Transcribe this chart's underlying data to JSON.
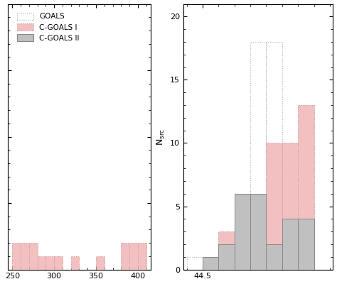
{
  "left_panel": {
    "xlim": [
      245,
      415
    ],
    "ylim": [
      0,
      20
    ],
    "xticks": [
      250,
      300,
      350,
      400
    ],
    "yticks": [
      0,
      5,
      10,
      15,
      20
    ],
    "goals_bins": [
      250,
      260,
      270,
      280,
      290,
      300,
      310,
      320,
      330,
      340,
      350,
      360,
      370,
      380,
      390,
      400,
      410
    ],
    "goals_counts": [
      2,
      2,
      2,
      1,
      1,
      1,
      0,
      1,
      0,
      0,
      1,
      0,
      0,
      2,
      2,
      2,
      0
    ],
    "cgoals1_bins": [
      250,
      260,
      270,
      280,
      290,
      300,
      310,
      320,
      330,
      340,
      350,
      360,
      370,
      380,
      390,
      400,
      410
    ],
    "cgoals1_counts": [
      2,
      2,
      2,
      1,
      1,
      1,
      0,
      1,
      0,
      0,
      1,
      0,
      0,
      2,
      2,
      2,
      0
    ]
  },
  "right_panel": {
    "ylabel": "N$_{\\mathrm{src}}$",
    "xlim": [
      44.2,
      46.55
    ],
    "ylim": [
      0,
      21
    ],
    "xticks": [
      44.5
    ],
    "yticks": [
      0,
      5,
      10,
      15,
      20
    ],
    "bin_width": 0.25,
    "goals_bins": [
      44.25,
      44.5,
      44.75,
      45.0,
      45.25,
      45.5,
      45.75,
      46.0,
      46.25
    ],
    "goals_counts": [
      1,
      1,
      3,
      5,
      18,
      18,
      10,
      13,
      0
    ],
    "cgoals1_bins": [
      44.25,
      44.5,
      44.75,
      45.0,
      45.25,
      45.5,
      45.75,
      46.0,
      46.25
    ],
    "cgoals1_counts": [
      0,
      0,
      3,
      5,
      5,
      10,
      10,
      13,
      0
    ],
    "cgoals2_bins": [
      44.25,
      44.5,
      44.75,
      45.0,
      45.25,
      45.5,
      45.75,
      46.0,
      46.25
    ],
    "cgoals2_counts": [
      0,
      1,
      2,
      6,
      6,
      2,
      4,
      4,
      0
    ]
  },
  "colors": {
    "goals_edge": "#aaaaaa",
    "cgoals1_edge": "#d49090",
    "cgoals1_fill": "#f2c0c0",
    "cgoals2_edge": "#888888",
    "cgoals2_fill": "#c0c0c0"
  },
  "legend": {
    "goals_label": "GOALS",
    "cgoals1_label": "C-GOALS I",
    "cgoals2_label": "C-GOALS II"
  },
  "figsize": [
    4.74,
    4.0
  ],
  "dpi": 100
}
